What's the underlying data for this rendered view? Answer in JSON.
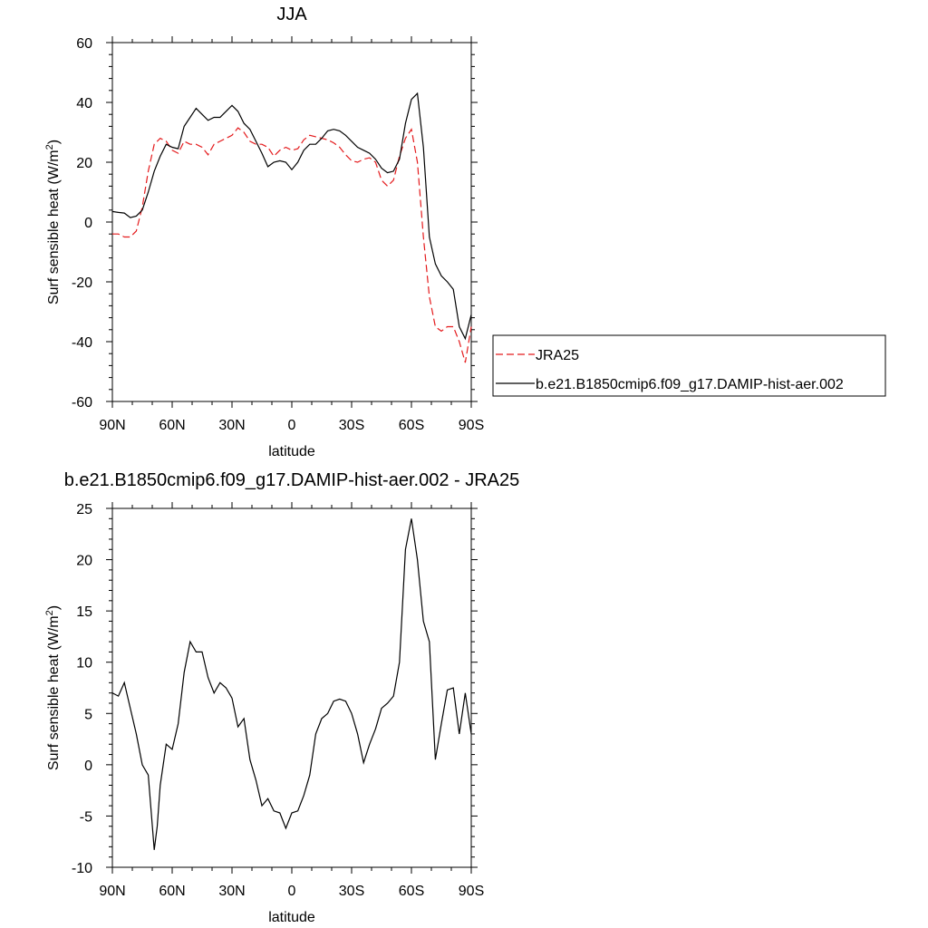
{
  "charts": [
    {
      "title": "JJA",
      "xlabel": "latitude",
      "ylabel": "Surf sensible heat (W/m",
      "ylabel_sup": "2",
      "ylabel_close": ")",
      "xtick_labels": [
        "90N",
        "60N",
        "30N",
        "0",
        "30S",
        "60S",
        "90S"
      ],
      "ytick_labels": [
        "60",
        "40",
        "20",
        "0",
        "-20",
        "-40",
        "-60"
      ],
      "legend": [
        "JRA25",
        "b.e21.B1850cmip6.f09_g17.DAMIP-hist-aer.002"
      ]
    },
    {
      "title": "b.e21.B1850cmip6.f09_g17.DAMIP-hist-aer.002 - JRA25",
      "xlabel": "latitude",
      "ylabel": "Surf sensible heat (W/m",
      "ylabel_sup": "2",
      "ylabel_close": ")",
      "xtick_labels": [
        "90N",
        "60N",
        "30N",
        "0",
        "30S",
        "60S",
        "90S"
      ],
      "ytick_labels": [
        "25",
        "20",
        "15",
        "10",
        "5",
        "0",
        "-5",
        "-10"
      ]
    }
  ],
  "chart_data": [
    {
      "type": "line",
      "title": "JJA",
      "xlabel": "latitude",
      "ylabel": "Surf sensible heat (W/m2)",
      "x_direction": "90N to 90S",
      "xlim": [
        90,
        -90
      ],
      "ylim": [
        -60,
        60
      ],
      "xticks": [
        90,
        60,
        30,
        0,
        -30,
        -60,
        -90
      ],
      "yticks": [
        60,
        40,
        20,
        0,
        -20,
        -40,
        -60
      ],
      "legend_position": "right-outside",
      "series": [
        {
          "name": "JRA25",
          "color": "#e41a1c",
          "dash": "dashed",
          "x": [
            90,
            87,
            84,
            81,
            78,
            75,
            72,
            69,
            66,
            63,
            60,
            57,
            54,
            51,
            48,
            45,
            42,
            39,
            36,
            33,
            30,
            27,
            24,
            21,
            18,
            15,
            12,
            9,
            6,
            3,
            0,
            -3,
            -6,
            -9,
            -12,
            -15,
            -18,
            -21,
            -24,
            -27,
            -30,
            -33,
            -36,
            -39,
            -42,
            -45,
            -48,
            -51,
            -54,
            -57,
            -60,
            -63,
            -66,
            -69,
            -72,
            -75,
            -78,
            -81,
            -84,
            -87,
            -90
          ],
          "y": [
            -4,
            -4,
            -5,
            -5,
            -3,
            5,
            17,
            26,
            28,
            27,
            24,
            23,
            27,
            26,
            26,
            25,
            22.5,
            26,
            27,
            28,
            29,
            31.5,
            30,
            27,
            26,
            26,
            25,
            22,
            24,
            25,
            24,
            24.5,
            27.5,
            29,
            28.5,
            28,
            27.5,
            26.5,
            25,
            22.5,
            20.5,
            20,
            21,
            21.5,
            20,
            14,
            12,
            14,
            22,
            28,
            31,
            20,
            -5,
            -25,
            -35,
            -36.5,
            -35,
            -35,
            -40,
            -47,
            -35
          ]
        },
        {
          "name": "b.e21.B1850cmip6.f09_g17.DAMIP-hist-aer.002",
          "color": "#000000",
          "dash": "solid",
          "x": [
            90,
            87,
            84,
            81,
            78,
            75,
            72,
            69,
            66,
            63,
            60,
            57,
            54,
            51,
            48,
            45,
            42,
            39,
            36,
            33,
            30,
            27,
            24,
            21,
            18,
            15,
            12,
            9,
            6,
            3,
            0,
            -3,
            -6,
            -9,
            -12,
            -15,
            -18,
            -21,
            -24,
            -27,
            -30,
            -33,
            -36,
            -39,
            -42,
            -45,
            -48,
            -51,
            -54,
            -57,
            -60,
            -63,
            -66,
            -69,
            -72,
            -75,
            -78,
            -81,
            -84,
            -87,
            -90
          ],
          "y": [
            3.5,
            3.2,
            3,
            1.5,
            2,
            4,
            10,
            17,
            22,
            26,
            25,
            24.5,
            32,
            35,
            38,
            36,
            34,
            35,
            35,
            37,
            39,
            37,
            33,
            31,
            27,
            23,
            18.5,
            20,
            20.5,
            20,
            17.5,
            20,
            24,
            26,
            26,
            28,
            30.5,
            31,
            30.5,
            29,
            27,
            25,
            24,
            23,
            21,
            18,
            16.5,
            17,
            21,
            33,
            41,
            43,
            25,
            -5,
            -14,
            -18,
            -20,
            -22.5,
            -35,
            -39,
            -31
          ]
        }
      ]
    },
    {
      "type": "line",
      "title": "b.e21.B1850cmip6.f09_g17.DAMIP-hist-aer.002 - JRA25",
      "xlabel": "latitude",
      "ylabel": "Surf sensible heat (W/m2)",
      "x_direction": "90N to 90S",
      "xlim": [
        90,
        -90
      ],
      "ylim": [
        -10,
        25
      ],
      "xticks": [
        90,
        60,
        30,
        0,
        -30,
        -60,
        -90
      ],
      "yticks": [
        25,
        20,
        15,
        10,
        5,
        0,
        -5,
        -10
      ],
      "series": [
        {
          "color": "#000000",
          "dash": "solid",
          "x": [
            90,
            87,
            84,
            81,
            78,
            75,
            72,
            69,
            67.5,
            66,
            63,
            60,
            57,
            54,
            51,
            48,
            45,
            42,
            39,
            36,
            33,
            30,
            27,
            24,
            21,
            18,
            15,
            12,
            9,
            6,
            3,
            0,
            -3,
            -6,
            -9,
            -12,
            -15,
            -18,
            -21,
            -24,
            -27,
            -30,
            -33,
            -36,
            -39,
            -42,
            -45,
            -48,
            -51,
            -54,
            -57,
            -60,
            -63,
            -66,
            -69,
            -72,
            -75,
            -78,
            -81,
            -84,
            -87,
            -90
          ],
          "y": [
            7,
            6.7,
            8,
            5.5,
            3,
            0,
            -1,
            -8.3,
            -6,
            -2,
            2,
            1.5,
            4,
            9,
            12,
            11,
            11,
            8.5,
            7,
            8,
            7.5,
            6.5,
            3.7,
            4.5,
            0.5,
            -1.5,
            -4,
            -3.3,
            -4.5,
            -4.7,
            -6.2,
            -4.7,
            -4.5,
            -3,
            -1,
            3,
            4.5,
            5,
            6.2,
            6.4,
            6.2,
            5,
            3,
            0.2,
            2,
            3.5,
            5.5,
            6,
            6.7,
            10,
            21,
            24,
            20,
            14,
            12,
            0.5,
            4,
            7.3,
            7.5,
            3,
            7,
            3
          ]
        }
      ]
    }
  ]
}
